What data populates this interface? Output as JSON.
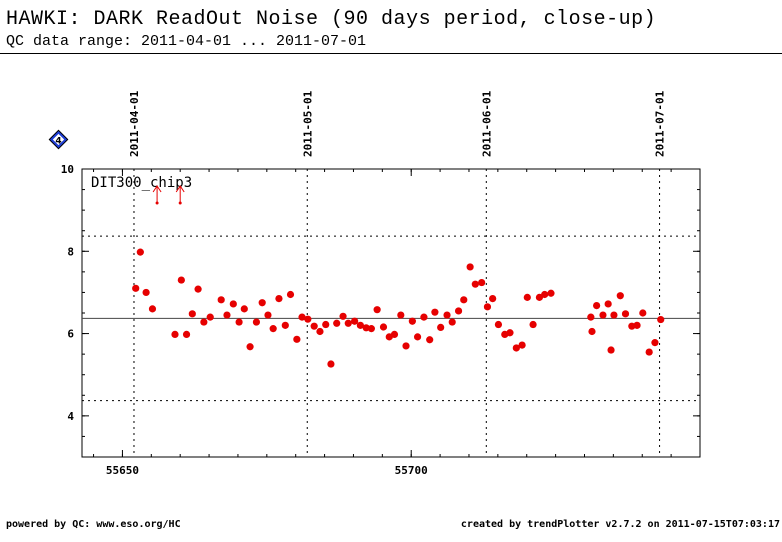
{
  "header": {
    "title": "HAWKI: DARK ReadOut Noise (90 days period, close-up)",
    "subtitle": "QC data range: 2011-04-01 ... 2011-07-01"
  },
  "footer": {
    "left": "powered by QC: www.eso.org/HC",
    "right": "created by trendPlotter v2.7.2 on 2011-07-15T07:03:17"
  },
  "badge": {
    "label": "4",
    "color": "#1f3fd6",
    "icon": "diamond-icon"
  },
  "chart_data": {
    "type": "scatter",
    "series_label": "DIT300_chip3",
    "xlim": [
      55643,
      55750
    ],
    "ylim": [
      3.0,
      10.0
    ],
    "x_ticks": [
      55650,
      55700
    ],
    "y_ticks": [
      4,
      6,
      8,
      10
    ],
    "date_lines": [
      {
        "label": "2011-04-01",
        "x": 55652
      },
      {
        "label": "2011-05-01",
        "x": 55682
      },
      {
        "label": "2011-06-01",
        "x": 55713
      },
      {
        "label": "2011-07-01",
        "x": 55743
      }
    ],
    "mean_line": 6.37,
    "sigma_lines": [
      8.37,
      4.37
    ],
    "outlier_arrows": [
      55656,
      55660
    ],
    "marker_color": "#e60000",
    "points": [
      [
        55652.3,
        7.1
      ],
      [
        55653.1,
        7.98
      ],
      [
        55654.1,
        7.0
      ],
      [
        55655.2,
        6.6
      ],
      [
        55659.1,
        5.98
      ],
      [
        55660.2,
        7.3
      ],
      [
        55661.1,
        5.98
      ],
      [
        55662.1,
        6.48
      ],
      [
        55663.1,
        7.08
      ],
      [
        55664.1,
        6.28
      ],
      [
        55665.2,
        6.4
      ],
      [
        55667.1,
        6.82
      ],
      [
        55668.1,
        6.45
      ],
      [
        55669.2,
        6.72
      ],
      [
        55670.2,
        6.28
      ],
      [
        55671.1,
        6.6
      ],
      [
        55672.1,
        5.68
      ],
      [
        55673.2,
        6.28
      ],
      [
        55674.2,
        6.75
      ],
      [
        55675.2,
        6.45
      ],
      [
        55676.1,
        6.12
      ],
      [
        55677.1,
        6.85
      ],
      [
        55678.2,
        6.2
      ],
      [
        55679.1,
        6.95
      ],
      [
        55680.2,
        5.86
      ],
      [
        55681.1,
        6.4
      ],
      [
        55682.1,
        6.35
      ],
      [
        55683.2,
        6.18
      ],
      [
        55684.2,
        6.05
      ],
      [
        55685.2,
        6.22
      ],
      [
        55686.1,
        5.26
      ],
      [
        55687.1,
        6.25
      ],
      [
        55688.2,
        6.42
      ],
      [
        55689.1,
        6.25
      ],
      [
        55690.2,
        6.3
      ],
      [
        55691.2,
        6.2
      ],
      [
        55692.2,
        6.14
      ],
      [
        55693.1,
        6.12
      ],
      [
        55694.1,
        6.58
      ],
      [
        55695.2,
        6.16
      ],
      [
        55696.2,
        5.92
      ],
      [
        55697.1,
        5.98
      ],
      [
        55698.2,
        6.45
      ],
      [
        55699.1,
        5.7
      ],
      [
        55700.2,
        6.3
      ],
      [
        55701.1,
        5.92
      ],
      [
        55702.2,
        6.4
      ],
      [
        55703.2,
        5.85
      ],
      [
        55704.1,
        6.52
      ],
      [
        55705.1,
        6.15
      ],
      [
        55706.2,
        6.45
      ],
      [
        55707.1,
        6.28
      ],
      [
        55708.2,
        6.55
      ],
      [
        55709.1,
        6.82
      ],
      [
        55710.2,
        7.62
      ],
      [
        55711.1,
        7.2
      ],
      [
        55712.2,
        7.24
      ],
      [
        55713.2,
        6.65
      ],
      [
        55714.1,
        6.85
      ],
      [
        55715.1,
        6.22
      ],
      [
        55716.2,
        5.98
      ],
      [
        55717.1,
        6.02
      ],
      [
        55718.2,
        5.65
      ],
      [
        55719.2,
        5.72
      ],
      [
        55720.1,
        6.88
      ],
      [
        55721.1,
        6.22
      ],
      [
        55722.2,
        6.88
      ],
      [
        55723.1,
        6.95
      ],
      [
        55724.2,
        6.98
      ],
      [
        55731.1,
        6.4
      ],
      [
        55731.3,
        6.05
      ],
      [
        55732.1,
        6.68
      ],
      [
        55733.2,
        6.45
      ],
      [
        55734.1,
        6.72
      ],
      [
        55734.6,
        5.6
      ],
      [
        55735.1,
        6.45
      ],
      [
        55736.2,
        6.92
      ],
      [
        55737.1,
        6.48
      ],
      [
        55738.2,
        6.18
      ],
      [
        55739.1,
        6.2
      ],
      [
        55740.1,
        6.5
      ],
      [
        55741.2,
        5.55
      ],
      [
        55742.2,
        5.78
      ],
      [
        55743.2,
        6.34
      ]
    ]
  }
}
